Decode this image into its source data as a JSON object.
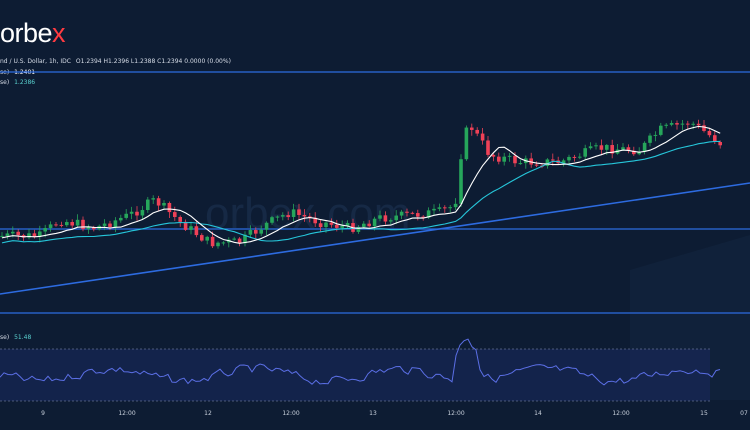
{
  "brand": {
    "logo_main": "orbe",
    "logo_x": "x"
  },
  "header": {
    "symbol_line": "nd / U.S. Dollar, 1h, IDC",
    "ohlc": "O1.2394  H1.2396  L1.2388  C1.2394  0.0000 (0.00%)",
    "ma1_label": "se)",
    "ma1_value": "1.2401",
    "ma2_label": "se)",
    "ma2_value": "1.2386"
  },
  "indicator": {
    "label": "se)",
    "value": "51.48"
  },
  "watermark": "orbex.com",
  "x_axis": [
    "9",
    "12:00",
    "12",
    "12:00",
    "13",
    "12:00",
    "14",
    "12:00",
    "15",
    "07"
  ],
  "colors": {
    "background": "#0d1c33",
    "up_candle": "#26a65b",
    "down_candle": "#ef4157",
    "ma_fast": "#ffffff",
    "ma_slow": "#26c6da",
    "trendline": "#2d6be0",
    "oscillator": "#5b6fe6"
  }
}
